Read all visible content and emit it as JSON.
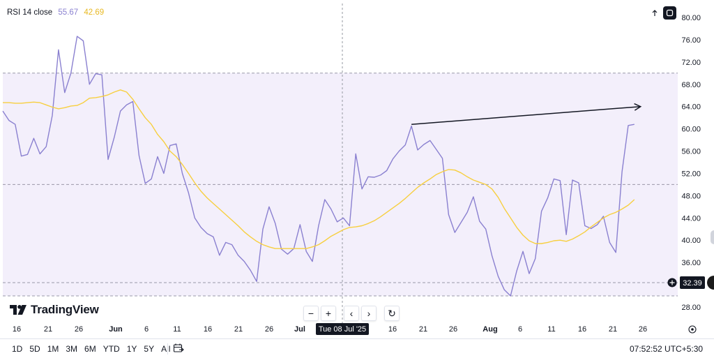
{
  "legend": {
    "name": "RSI 14 close",
    "rsi_value": "55.67",
    "ma_value": "42.69",
    "rsi_color": "#8a80d0",
    "ma_color": "#f7cf3f"
  },
  "top_buttons": {
    "arrow_icon": "arrow-up-icon",
    "fullscreen_icon": "fullscreen-icon"
  },
  "logo": {
    "text": "TradingView"
  },
  "nav": {
    "zoom_out": "−",
    "zoom_in": "+",
    "scroll_left": "‹",
    "scroll_right": "›",
    "reset": "↻"
  },
  "crosshair_label": "Tue 08 Jul '25",
  "price_badge": "32.39",
  "timeframes": [
    "1D",
    "5D",
    "1M",
    "3M",
    "6M",
    "YTD",
    "1Y",
    "5Y",
    "All"
  ],
  "clock": "07:52:52 UTC+5:30",
  "chart_data": {
    "type": "line",
    "ylim": [
      28,
      82
    ],
    "y_ticks": [
      "80.00",
      "76.00",
      "72.00",
      "68.00",
      "64.00",
      "60.00",
      "56.00",
      "52.00",
      "48.00",
      "44.00",
      "40.00",
      "36.00",
      "32.00",
      "28.00"
    ],
    "y_tick_values": [
      80,
      76,
      72,
      68,
      64,
      60,
      56,
      52,
      48,
      44,
      40,
      36,
      32,
      28
    ],
    "x_ticks": [
      "16",
      "21",
      "26",
      "Jun",
      "6",
      "11",
      "16",
      "21",
      "26",
      "Jul",
      "16",
      "21",
      "26",
      "Aug",
      "6",
      "11",
      "16",
      "21",
      "26"
    ],
    "x_tick_bold": [
      false,
      false,
      false,
      true,
      false,
      false,
      false,
      false,
      false,
      true,
      false,
      false,
      false,
      true,
      false,
      false,
      false,
      false,
      false
    ],
    "bands": {
      "upper": 70,
      "middle": 50,
      "lower": 30,
      "marker": 32.39
    },
    "bar_count": 110,
    "series": [
      {
        "name": "RSI 14 close",
        "color": "#8a80d0",
        "values": [
          63.2,
          61.5,
          60.8,
          55.1,
          55.4,
          58.3,
          55.5,
          56.8,
          62.4,
          74.2,
          66.5,
          70.0,
          76.6,
          75.8,
          68.0,
          69.9,
          69.7,
          54.5,
          58.5,
          63.2,
          64.3,
          64.9,
          55.2,
          50.2,
          51.0,
          55.0,
          52.0,
          57.0,
          57.3,
          52.0,
          48.5,
          44.0,
          42.3,
          41.2,
          40.6,
          37.3,
          39.6,
          39.2,
          37.3,
          36.2,
          34.6,
          32.6,
          42.0,
          46.0,
          43.0,
          38.4,
          37.5,
          38.5,
          42.8,
          38.0,
          36.2,
          42.6,
          47.3,
          45.6,
          43.3,
          44.0,
          42.6,
          55.5,
          49.2,
          51.4,
          51.3,
          51.7,
          52.5,
          54.6,
          56.0,
          57.1,
          60.5,
          56.2,
          57.2,
          57.9,
          56.3,
          54.7,
          44.6,
          41.4,
          43.2,
          45.0,
          47.8,
          43.4,
          42.0,
          37.2,
          33.5,
          31.1,
          30.0,
          34.5,
          38.0,
          34.0,
          36.7,
          45.2,
          47.6,
          51.0,
          50.7,
          41.0,
          50.8,
          50.3,
          42.6,
          42.1,
          42.8,
          44.3,
          39.6,
          37.8,
          52.3,
          60.6,
          60.8
        ]
      },
      {
        "name": "RSI MA",
        "color": "#f7cf3f",
        "values": [
          64.7,
          64.7,
          64.6,
          64.6,
          64.7,
          64.8,
          64.7,
          64.3,
          63.9,
          63.6,
          63.8,
          64.1,
          64.2,
          64.7,
          65.5,
          65.6,
          65.8,
          66.1,
          66.6,
          67.0,
          66.6,
          65.3,
          63.6,
          62.0,
          60.8,
          59.0,
          57.7,
          56.0,
          55.0,
          53.6,
          52.0,
          50.3,
          48.8,
          47.6,
          46.6,
          45.6,
          44.6,
          43.6,
          42.6,
          41.5,
          40.6,
          39.8,
          39.2,
          38.8,
          38.5,
          38.5,
          38.5,
          38.5,
          38.5,
          38.5,
          38.8,
          39.2,
          39.9,
          40.7,
          41.3,
          41.9,
          42.3,
          42.4,
          42.6,
          43.0,
          43.5,
          44.2,
          45.0,
          45.8,
          46.6,
          47.5,
          48.5,
          49.5,
          50.3,
          51.0,
          51.8,
          52.3,
          52.7,
          52.6,
          52.1,
          51.4,
          50.8,
          50.4,
          50.0,
          49.2,
          47.7,
          45.7,
          44.0,
          42.3,
          40.9,
          39.9,
          39.4,
          39.4,
          39.6,
          39.9,
          40.0,
          39.8,
          40.2,
          40.8,
          41.5,
          42.4,
          43.2,
          44.0,
          44.6,
          45.0,
          45.6,
          46.3,
          47.3
        ]
      }
    ],
    "trendline": {
      "from": [
        66,
        60.8
      ],
      "to": [
        103,
        64.0
      ]
    }
  }
}
